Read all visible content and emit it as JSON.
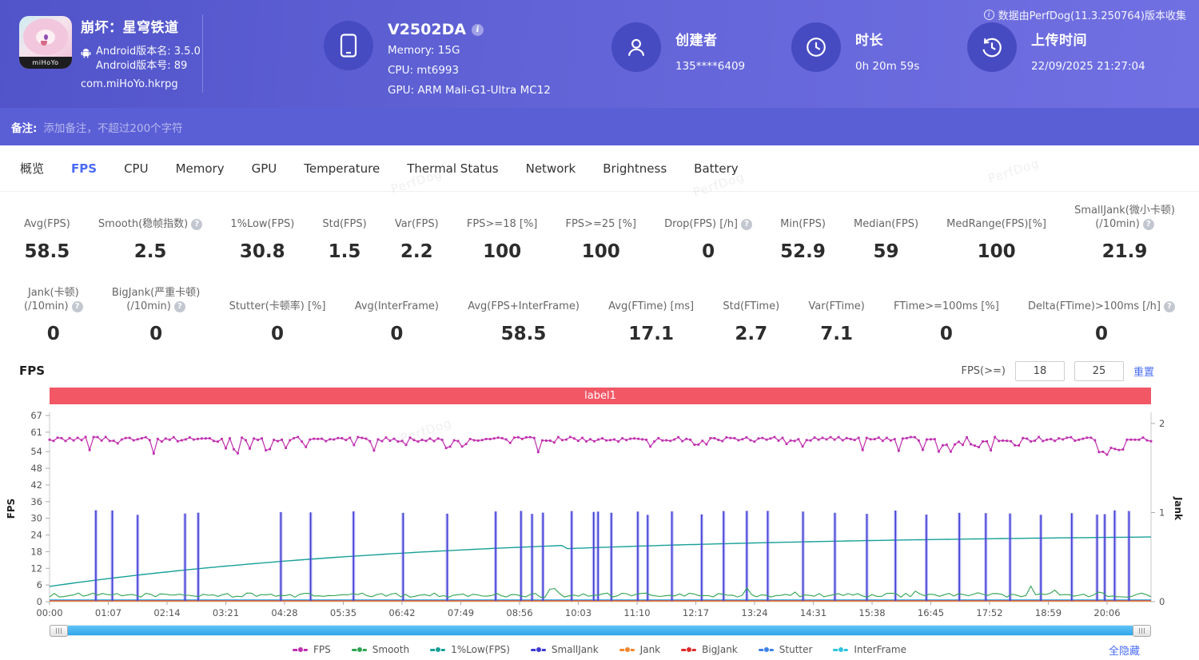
{
  "header": {
    "app": {
      "title": "崩坏：星穹铁道",
      "version_name": "Android版本名: 3.5.0",
      "version_code": "Android版本号: 89",
      "package": "com.miHoYo.hkrpg",
      "icon_badge": "miHoYo"
    },
    "device": {
      "model": "V2502DA",
      "memory": "Memory: 15G",
      "cpu": "CPU: mt6993",
      "gpu": "GPU: ARM Mali-G1-Ultra MC12"
    },
    "creator": {
      "label": "创建者",
      "value": "135****6409"
    },
    "duration": {
      "label": "时长",
      "value": "0h 20m 59s"
    },
    "upload": {
      "label": "上传时间",
      "value": "22/09/2025 21:27:04"
    },
    "collect_note": "数据由PerfDog(11.3.250764)版本收集"
  },
  "notes": {
    "label": "备注:",
    "placeholder": "添加备注，不超过200个字符"
  },
  "watermark": "PerfDog",
  "tabs": [
    {
      "label": "概览",
      "active": false
    },
    {
      "label": "FPS",
      "active": true
    },
    {
      "label": "CPU",
      "active": false
    },
    {
      "label": "Memory",
      "active": false
    },
    {
      "label": "GPU",
      "active": false
    },
    {
      "label": "Temperature",
      "active": false
    },
    {
      "label": "Thermal Status",
      "active": false
    },
    {
      "label": "Network",
      "active": false
    },
    {
      "label": "Brightness",
      "active": false
    },
    {
      "label": "Battery",
      "active": false
    }
  ],
  "metrics_row1": [
    {
      "label": "Avg(FPS)",
      "value": "58.5"
    },
    {
      "label": "Smooth(稳帧指数)",
      "value": "2.5",
      "info": true
    },
    {
      "label": "1%Low(FPS)",
      "value": "30.8"
    },
    {
      "label": "Std(FPS)",
      "value": "1.5"
    },
    {
      "label": "Var(FPS)",
      "value": "2.2"
    },
    {
      "label": "FPS>=18 [%]",
      "value": "100"
    },
    {
      "label": "FPS>=25 [%]",
      "value": "100"
    },
    {
      "label": "Drop(FPS) [/h]",
      "value": "0",
      "info": true
    },
    {
      "label": "Min(FPS)",
      "value": "52.9"
    },
    {
      "label": "Median(FPS)",
      "value": "59"
    },
    {
      "label": "MedRange(FPS)[%]",
      "value": "100"
    },
    {
      "label": "SmallJank(微小卡顿)",
      "label2": "(/10min)",
      "value": "21.9",
      "info": true
    }
  ],
  "metrics_row2": [
    {
      "label": "Jank(卡顿)",
      "label2": "(/10min)",
      "value": "0",
      "info": true
    },
    {
      "label": "BigJank(严重卡顿)",
      "label2": "(/10min)",
      "value": "0",
      "info": true
    },
    {
      "label": "Stutter(卡顿率) [%]",
      "value": "0"
    },
    {
      "label": "Avg(InterFrame)",
      "value": "0"
    },
    {
      "label": "Avg(FPS+InterFrame)",
      "value": "58.5"
    },
    {
      "label": "Avg(FTime) [ms]",
      "value": "17.1"
    },
    {
      "label": "Std(FTime)",
      "value": "2.7"
    },
    {
      "label": "Var(FTime)",
      "value": "7.1"
    },
    {
      "label": "FTime>=100ms [%]",
      "value": "0"
    },
    {
      "label": "Delta(FTime)>100ms [/h]",
      "value": "0",
      "info": true
    }
  ],
  "fps_section": {
    "title": "FPS",
    "filter_label": "FPS(>=)",
    "input1": "18",
    "input2": "25",
    "reset_label": "重置",
    "hide_all_label": "全隐藏"
  },
  "colors": {
    "label_bar": "#f25766",
    "tab_active": "#4a6bf5",
    "scrollbar_fill": "#3fb0f2"
  },
  "chart_data": {
    "type": "line",
    "title": "label1",
    "x_ticks": [
      "00:00",
      "01:07",
      "02:14",
      "03:21",
      "04:28",
      "05:35",
      "06:42",
      "07:49",
      "08:56",
      "10:03",
      "11:10",
      "12:17",
      "13:24",
      "14:31",
      "15:38",
      "16:45",
      "17:52",
      "18:59",
      "20:06"
    ],
    "y_left": {
      "label": "FPS",
      "ticks": [
        0,
        6,
        12,
        18,
        24,
        30,
        36,
        42,
        48,
        54,
        61,
        67
      ],
      "range": [
        0,
        67
      ]
    },
    "y_right": {
      "label": "Jank",
      "ticks": [
        0,
        1,
        2
      ],
      "range": [
        0,
        2
      ]
    },
    "grid": false,
    "legend_position": "bottom",
    "series": [
      {
        "name": "FPS",
        "color": "#bf2fae",
        "axis": "left",
        "kind": "noisy-line",
        "base": 59,
        "avg": 58.5,
        "min": 52.9,
        "max": 61,
        "marker": "square"
      },
      {
        "name": "Smooth",
        "color": "#2fa352",
        "axis": "left",
        "kind": "noisy-line",
        "base": 2.5,
        "min": 0.8,
        "max": 5
      },
      {
        "name": "1%Low(FPS)",
        "color": "#17a098",
        "axis": "left",
        "kind": "rising-curve",
        "start": 5.5,
        "end": 24.5,
        "step_down_at": 0.467,
        "step_down_by": 1.2
      },
      {
        "name": "SmallJank",
        "color": "#3c39d4",
        "axis": "right",
        "kind": "spikes",
        "spike_value": 1,
        "positions": [
          0.042,
          0.057,
          0.08,
          0.123,
          0.135,
          0.21,
          0.237,
          0.276,
          0.321,
          0.361,
          0.405,
          0.428,
          0.438,
          0.448,
          0.474,
          0.494,
          0.498,
          0.51,
          0.534,
          0.543,
          0.565,
          0.592,
          0.612,
          0.633,
          0.652,
          0.684,
          0.713,
          0.742,
          0.768,
          0.796,
          0.826,
          0.85,
          0.872,
          0.9,
          0.928,
          0.951,
          0.958,
          0.967,
          0.98
        ]
      },
      {
        "name": "Jank",
        "color": "#f5862b",
        "axis": "right",
        "kind": "flat",
        "value": 0
      },
      {
        "name": "BigJank",
        "color": "#e02b2b",
        "axis": "right",
        "kind": "flat",
        "value": 0
      },
      {
        "name": "Stutter",
        "color": "#3b82e8",
        "axis": "right",
        "kind": "flat",
        "value": 0
      },
      {
        "name": "InterFrame",
        "color": "#2fc4e0",
        "axis": "left",
        "kind": "flat",
        "value": 0
      }
    ]
  }
}
